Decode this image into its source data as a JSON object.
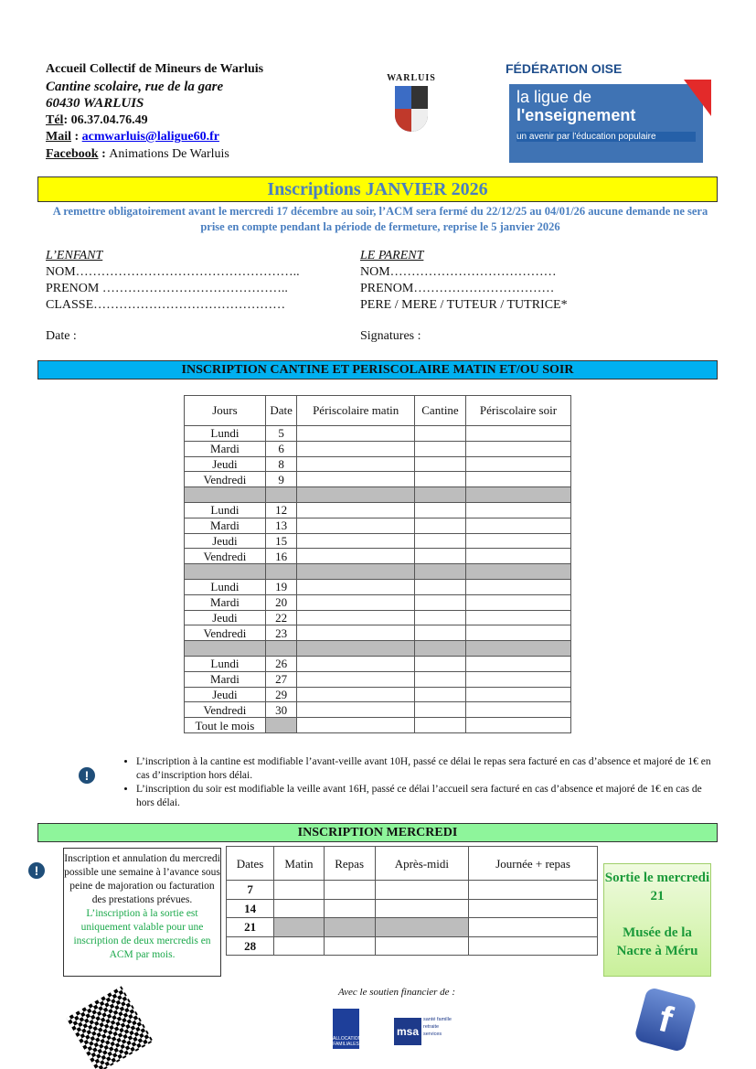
{
  "header": {
    "org": "Accueil Collectif de Mineurs de Warluis",
    "place": "Cantine scolaire, rue de la gare",
    "city": "60430 WARLUIS",
    "tel_label": "Tél",
    "tel": ": 06.37.04.76.49",
    "mail_label": "Mail",
    "mail": "acmwarluis@laligue60.fr",
    "fb_label": "Facebook",
    "fb": "Animations De Warluis",
    "crest_text": "WARLUIS",
    "logo_top": "FÉDÉRATION OISE",
    "logo_l1": "la ligue de",
    "logo_l2": "l'enseignement",
    "logo_tag": "un avenir par l'éducation populaire"
  },
  "banner": {
    "title": "Inscriptions JANVIER 2026",
    "notice": "A remettre obligatoirement avant le mercredi 17 décembre au soir, l’ACM sera fermé du 22/12/25 au 04/01/26 aucune demande ne sera prise en compte pendant la période de fermeture, reprise le 5 janvier 2026"
  },
  "child": {
    "title": "L’ENFANT",
    "nom": "NOM……………………………………………..",
    "prenom": "PRENOM ……………………………………..",
    "classe": "CLASSE………………………………………"
  },
  "parent": {
    "title": "LE PARENT",
    "nom": "NOM…………………………………",
    "prenom": "PRENOM……………………………",
    "role": "PERE / MERE / TUTEUR / TUTRICE*"
  },
  "date_label": "Date :",
  "signatures_label": "Signatures :",
  "section1": {
    "title": "INSCRIPTION CANTINE ET PERISCOLAIRE MATIN ET/OU SOIR",
    "color": "#00b0f0",
    "headers": [
      "Jours",
      "Date",
      "Périscolaire matin",
      "Cantine",
      "Périscolaire soir"
    ],
    "rows": [
      [
        "Lundi",
        "5"
      ],
      [
        "Mardi",
        "6"
      ],
      [
        "Jeudi",
        "8"
      ],
      [
        "Vendredi",
        "9"
      ],
      null,
      [
        "Lundi",
        "12"
      ],
      [
        "Mardi",
        "13"
      ],
      [
        "Jeudi",
        "15"
      ],
      [
        "Vendredi",
        "16"
      ],
      null,
      [
        "Lundi",
        "19"
      ],
      [
        "Mardi",
        "20"
      ],
      [
        "Jeudi",
        "22"
      ],
      [
        "Vendredi",
        "23"
      ],
      null,
      [
        "Lundi",
        "26"
      ],
      [
        "Mardi",
        "27"
      ],
      [
        "Jeudi",
        "29"
      ],
      [
        "Vendredi",
        "30"
      ],
      [
        "Tout le mois",
        ""
      ]
    ]
  },
  "rules": [
    "L’inscription à la cantine est modifiable l’avant-veille avant 10H, passé ce délai le repas sera facturé en cas d’absence et majoré de 1€ en cas d’inscription hors délai.",
    "L’inscription du soir est modifiable la veille avant 16H, passé ce délai l’accueil sera facturé en cas d’absence et majoré de 1€ en cas de hors délai."
  ],
  "section2": {
    "title": "INSCRIPTION MERCREDI",
    "color": "#8ef59b",
    "note": "Inscription et annulation du mercredi possible une semaine à l’avance sous peine de majoration ou facturation des prestations prévues.",
    "note_green": "L’inscription à la sortie est uniquement valable pour une inscription de deux mercredis en ACM par mois.",
    "headers": [
      "Dates",
      "Matin",
      "Repas",
      "Après-midi",
      "Journée + repas"
    ],
    "dates": [
      "7",
      "14",
      "21",
      "28"
    ],
    "sortie1": "Sortie le mercredi 21",
    "sortie2": "Musée de la Nacre à Méru"
  },
  "footer": {
    "support": "Avec le soutien financier de :",
    "caf": "ALLOCATIONS FAMILIALES",
    "msa": "msa",
    "msa_tag": "santé famille retraite services"
  }
}
